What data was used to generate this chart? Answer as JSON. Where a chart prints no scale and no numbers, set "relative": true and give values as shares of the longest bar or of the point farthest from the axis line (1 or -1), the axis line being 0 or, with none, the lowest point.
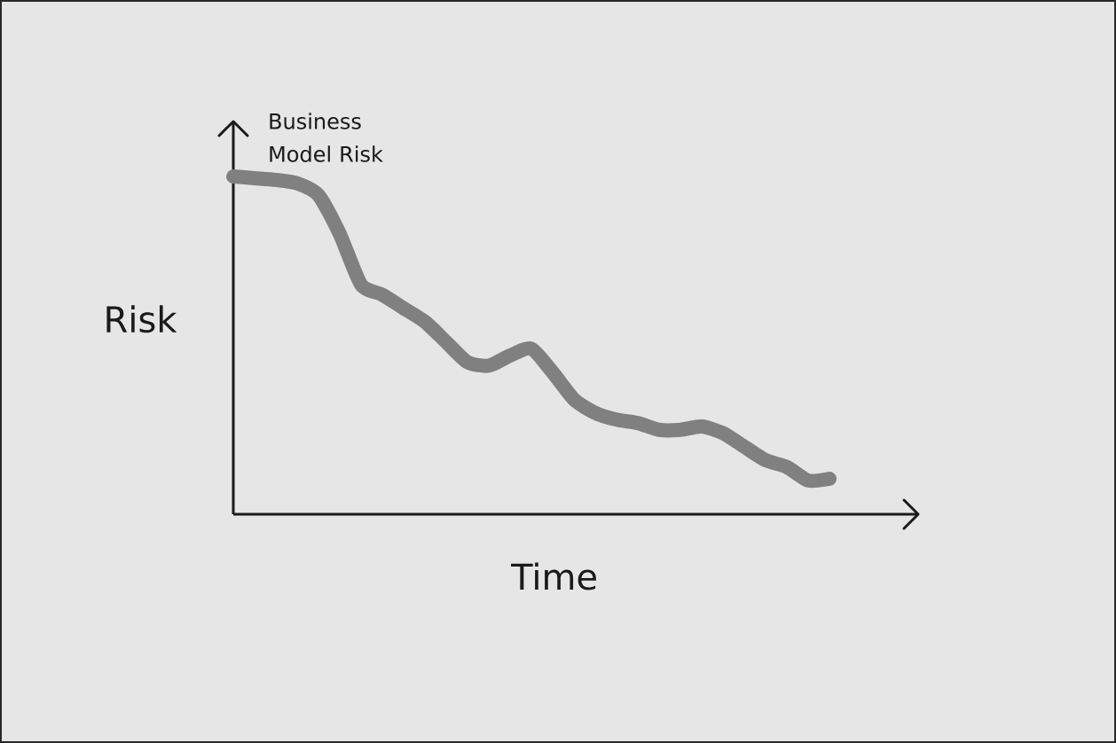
{
  "chart_data": {
    "type": "line",
    "xlabel": "Time",
    "ylabel": "Risk",
    "relative": true,
    "categories": [
      null,
      null,
      null,
      null,
      null,
      null,
      null,
      null,
      null,
      null,
      null,
      null,
      null,
      null,
      null,
      null,
      null,
      null,
      null,
      null,
      null,
      null,
      null,
      null,
      null,
      null,
      null,
      null,
      null
    ],
    "series": [
      {
        "name": "Business Model Risk",
        "color": "#808080",
        "values": [
          1.0,
          0.995,
          0.99,
          0.98,
          0.945,
          0.83,
          0.68,
          0.65,
          0.61,
          0.57,
          0.51,
          0.45,
          0.44,
          0.47,
          0.49,
          0.42,
          0.34,
          0.3,
          0.28,
          0.27,
          0.25,
          0.25,
          0.26,
          0.24,
          0.2,
          0.16,
          0.14,
          0.1,
          0.105
        ]
      }
    ]
  }
}
